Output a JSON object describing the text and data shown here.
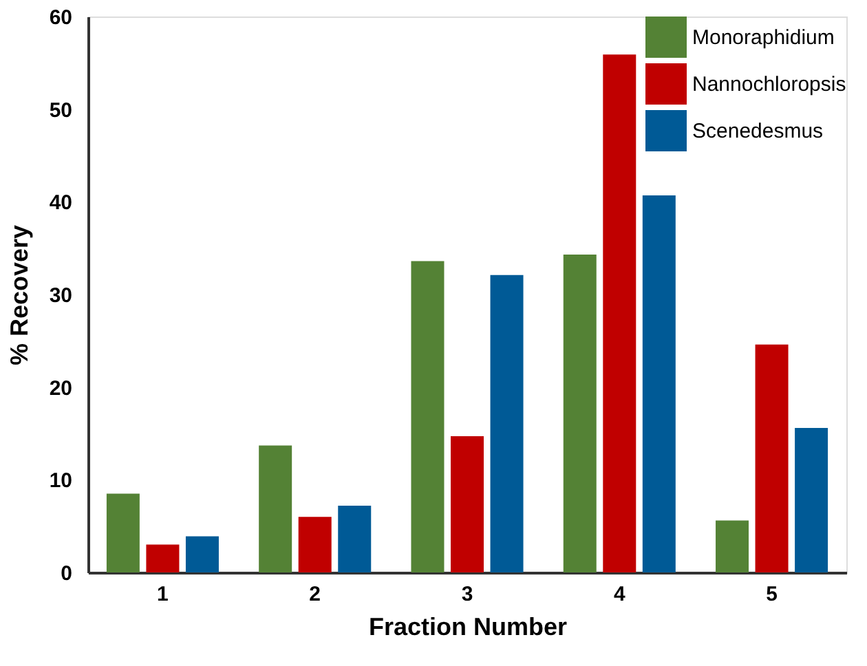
{
  "chart_data": {
    "type": "bar",
    "xlabel": "Fraction Number",
    "ylabel": "% Recovery",
    "categories": [
      "1",
      "2",
      "3",
      "4",
      "5"
    ],
    "series": [
      {
        "name": "Monoraphidium",
        "color": "#548235",
        "values": [
          8.5,
          13.7,
          33.6,
          34.3,
          5.6
        ]
      },
      {
        "name": "Nannochloropsis",
        "color": "#c00000",
        "values": [
          3.0,
          6.0,
          14.7,
          55.9,
          24.6
        ]
      },
      {
        "name": "Scenedesmus",
        "color": "#005a96",
        "values": [
          3.9,
          7.2,
          32.1,
          40.7,
          15.6
        ]
      }
    ],
    "ylim": [
      0,
      60
    ],
    "yticks": [
      0,
      10,
      20,
      30,
      40,
      50,
      60
    ],
    "grid": false,
    "legend": "top right"
  }
}
